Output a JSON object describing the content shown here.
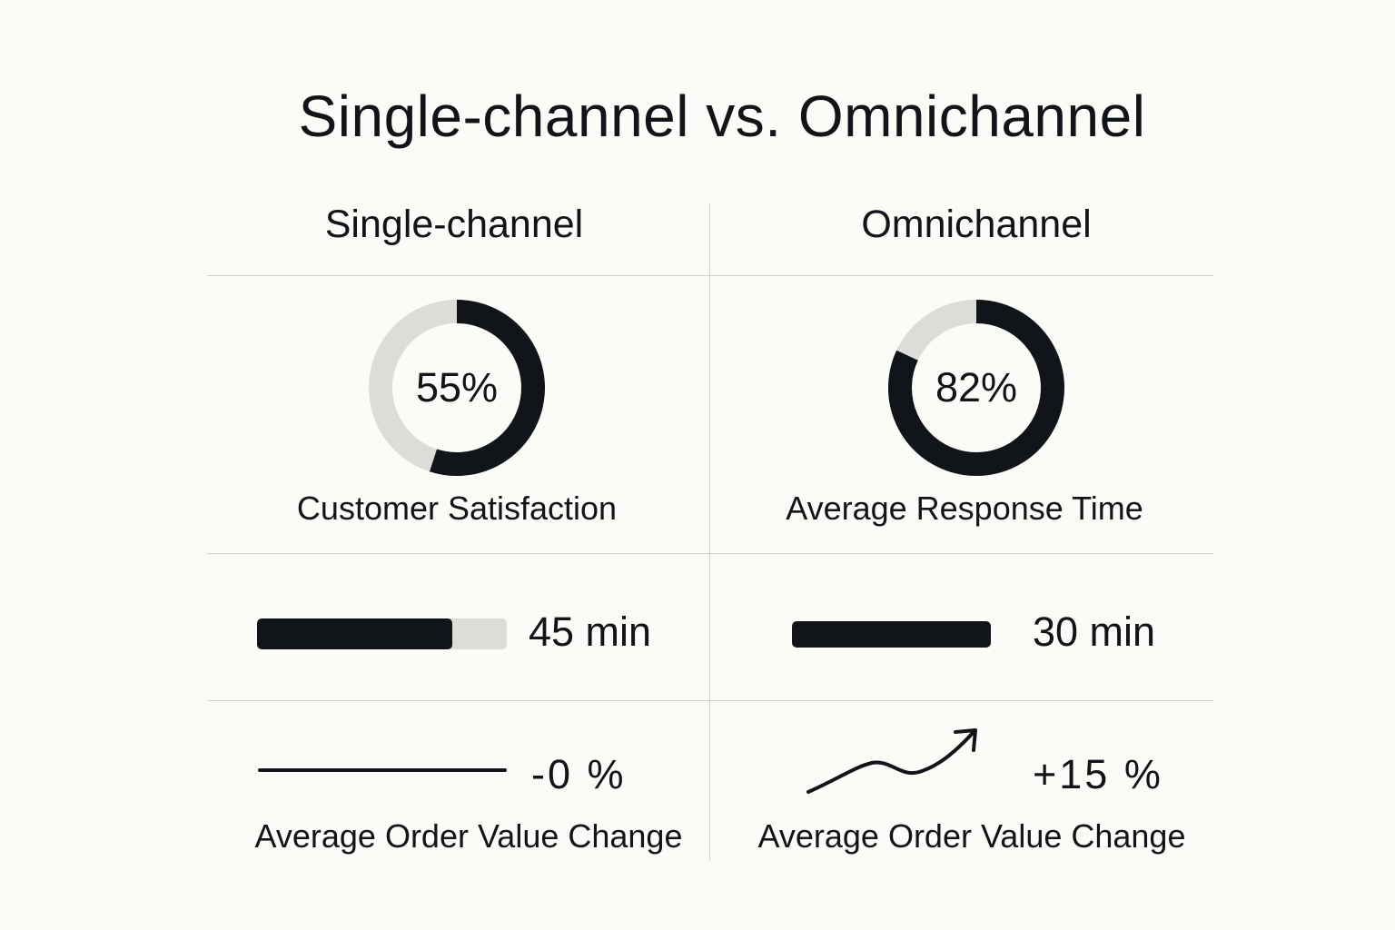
{
  "title": "Single-channel vs. Omnichannel",
  "colors": {
    "background": "#fbfbf8",
    "dark": "#111418",
    "light": "#dcdcd8",
    "divider": "#d2d2ce"
  },
  "columns": [
    {
      "heading": "Single-channel",
      "donut": {
        "value_label": "55%",
        "label": "Customer Satisfaction"
      },
      "bar": {
        "value_label": "45 min"
      },
      "change": {
        "value_label": "-0 %",
        "label": "Average Order Value Change",
        "trend": "flat"
      }
    },
    {
      "heading": "Omnichannel",
      "donut": {
        "value_label": "82%",
        "label": "Average Response Time"
      },
      "bar": {
        "value_label": "30 min"
      },
      "change": {
        "value_label": "+15 %",
        "label": "Average Order Value Change",
        "trend": "up-arrow"
      }
    }
  ],
  "chart_data": {
    "type": "table",
    "title": "Single-channel vs. Omnichannel",
    "columns": [
      "Single-channel",
      "Omnichannel"
    ],
    "rows": [
      {
        "label": [
          "Customer Satisfaction",
          "Average Response Time"
        ],
        "kind": "donut",
        "values": [
          55,
          82
        ],
        "unit": "%"
      },
      {
        "kind": "bar",
        "values": [
          45,
          30
        ],
        "unit": "min",
        "fill_fraction": [
          0.78,
          1.0
        ]
      },
      {
        "label": [
          "Average Order Value Change",
          "Average Order Value Change"
        ],
        "kind": "trend",
        "values": [
          0,
          15
        ],
        "unit": "%"
      }
    ]
  }
}
